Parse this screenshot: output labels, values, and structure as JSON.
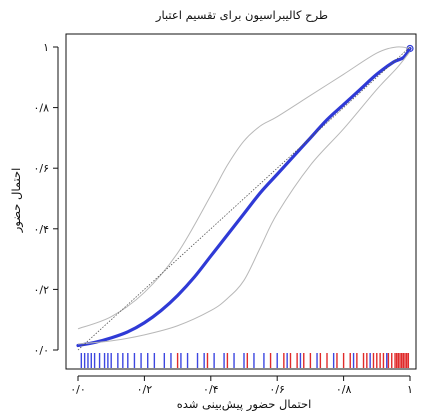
{
  "chart_data": {
    "type": "line",
    "title": "طرح کالیبراسیون برای تقسیم اعتبار",
    "xlabel": "احتمال حضور پیش‌بینی شده",
    "ylabel": "احتمال حضور",
    "xlim": [
      0,
      1
    ],
    "ylim": [
      0,
      1
    ],
    "x_ticks": [
      0,
      0.2,
      0.4,
      0.6,
      0.8,
      1
    ],
    "x_tick_labels": [
      "۰/۰",
      "۰/۲",
      "۰/۴",
      "۰/۶",
      "۰/۸",
      "۱"
    ],
    "y_ticks": [
      0,
      0.2,
      0.4,
      0.6,
      0.8,
      1
    ],
    "y_tick_labels": [
      "۰/۰",
      "۰/۲",
      "۰/۴",
      "۰/۶",
      "۰/۸",
      "۱"
    ],
    "grid": false,
    "legend": "none",
    "series": [
      {
        "role": "calibration-curve",
        "color": "#2f3ad6",
        "x": [
          0,
          0.05,
          0.1,
          0.15,
          0.2,
          0.25,
          0.3,
          0.35,
          0.4,
          0.45,
          0.5,
          0.55,
          0.6,
          0.65,
          0.7,
          0.75,
          0.8,
          0.85,
          0.9,
          0.95,
          0.98,
          1
        ],
        "y": [
          0.015,
          0.025,
          0.04,
          0.06,
          0.09,
          0.13,
          0.18,
          0.24,
          0.31,
          0.38,
          0.45,
          0.52,
          0.58,
          0.64,
          0.7,
          0.76,
          0.81,
          0.86,
          0.91,
          0.95,
          0.965,
          0.995
        ]
      },
      {
        "role": "upper-confidence-band",
        "color": "#b8b8b8",
        "x": [
          0,
          0.1,
          0.2,
          0.3,
          0.4,
          0.45,
          0.5,
          0.55,
          0.6,
          0.7,
          0.8,
          0.9,
          0.96,
          1
        ],
        "y": [
          0.07,
          0.11,
          0.19,
          0.32,
          0.51,
          0.61,
          0.69,
          0.74,
          0.77,
          0.84,
          0.91,
          0.98,
          1.0,
          0.995
        ]
      },
      {
        "role": "lower-confidence-band",
        "color": "#b8b8b8",
        "x": [
          0,
          0.1,
          0.2,
          0.3,
          0.4,
          0.45,
          0.5,
          0.55,
          0.6,
          0.7,
          0.8,
          0.9,
          0.96,
          1
        ],
        "y": [
          0.02,
          0.03,
          0.05,
          0.08,
          0.13,
          0.17,
          0.23,
          0.34,
          0.45,
          0.61,
          0.73,
          0.86,
          0.93,
          0.985
        ]
      },
      {
        "role": "reference-diagonal",
        "color": "#555555",
        "x": [
          0,
          1
        ],
        "y": [
          0,
          1
        ]
      }
    ],
    "rug": {
      "blue_color": "#3c46e0",
      "red_color": "#e02a2a",
      "blue_x": [
        0.01,
        0.02,
        0.03,
        0.04,
        0.05,
        0.065,
        0.08,
        0.09,
        0.1,
        0.12,
        0.135,
        0.15,
        0.17,
        0.19,
        0.21,
        0.23,
        0.26,
        0.28,
        0.31,
        0.33,
        0.36,
        0.38,
        0.41,
        0.44,
        0.47,
        0.5,
        0.53,
        0.56,
        0.6,
        0.63,
        0.67,
        0.72,
        0.77,
        0.83,
        0.88,
        0.93
      ],
      "red_x": [
        0.3,
        0.39,
        0.45,
        0.51,
        0.58,
        0.62,
        0.64,
        0.66,
        0.68,
        0.7,
        0.73,
        0.75,
        0.78,
        0.8,
        0.82,
        0.84,
        0.86,
        0.87,
        0.89,
        0.9,
        0.91,
        0.92,
        0.935,
        0.945,
        0.955,
        0.96,
        0.965,
        0.97,
        0.975,
        0.98,
        0.985,
        0.99,
        0.995
      ]
    }
  }
}
